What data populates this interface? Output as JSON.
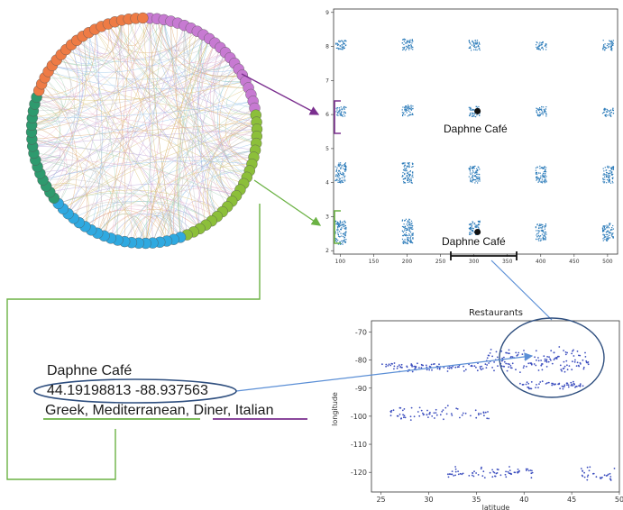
{
  "network": {
    "groups": [
      {
        "name": "purple",
        "color": "#c77ad2",
        "count": 22
      },
      {
        "name": "green",
        "color": "#8cbf3a",
        "count": 22
      },
      {
        "name": "cyan",
        "color": "#2fa9e0",
        "count": 20
      },
      {
        "name": "teal",
        "color": "#2e9a6e",
        "count": 16
      },
      {
        "name": "orange",
        "color": "#ee7b45",
        "count": 20
      }
    ]
  },
  "strip_chart": {
    "chart_data": {
      "type": "scatter",
      "title": "",
      "xlabel": "",
      "ylabel": "",
      "xlim": [
        90,
        515
      ],
      "ylim": [
        1.9,
        9.1
      ],
      "x_ticks": [
        "100",
        "150",
        "200",
        "250",
        "300",
        "350",
        "400",
        "450",
        "500"
      ],
      "y_ticks": [
        "2",
        "3",
        "4",
        "5",
        "6",
        "7",
        "8",
        "9"
      ],
      "series": [
        {
          "values": [
            {
              "x": 100,
              "y_min": 7.9,
              "y_max": 8.2
            },
            {
              "x": 200,
              "y_min": 7.9,
              "y_max": 8.25
            },
            {
              "x": 300,
              "y_min": 7.9,
              "y_max": 8.2
            },
            {
              "x": 400,
              "y_min": 7.9,
              "y_max": 8.15
            },
            {
              "x": 500,
              "y_min": 7.9,
              "y_max": 8.2
            },
            {
              "x": 100,
              "y_min": 5.95,
              "y_max": 6.25
            },
            {
              "x": 200,
              "y_min": 5.95,
              "y_max": 6.3
            },
            {
              "x": 300,
              "y_min": 5.95,
              "y_max": 6.25
            },
            {
              "x": 400,
              "y_min": 5.95,
              "y_max": 6.25
            },
            {
              "x": 500,
              "y_min": 5.95,
              "y_max": 6.2
            },
            {
              "x": 100,
              "y_min": 4.0,
              "y_max": 4.6
            },
            {
              "x": 200,
              "y_min": 4.0,
              "y_max": 4.6
            },
            {
              "x": 300,
              "y_min": 4.0,
              "y_max": 4.5
            },
            {
              "x": 400,
              "y_min": 4.0,
              "y_max": 4.5
            },
            {
              "x": 500,
              "y_min": 4.0,
              "y_max": 4.5
            },
            {
              "x": 100,
              "y_min": 2.2,
              "y_max": 2.9
            },
            {
              "x": 200,
              "y_min": 2.2,
              "y_max": 2.95
            },
            {
              "x": 300,
              "y_min": 2.2,
              "y_max": 2.9
            },
            {
              "x": 400,
              "y_min": 2.3,
              "y_max": 2.8
            },
            {
              "x": 500,
              "y_min": 2.3,
              "y_max": 2.85
            }
          ]
        }
      ],
      "highlight_points": [
        {
          "x": 300,
          "y": 6.1
        },
        {
          "x": 300,
          "y": 2.55
        }
      ],
      "point_color": "#2b7bb9"
    },
    "label_upper": "Daphne Café",
    "label_lower": "Daphne Café"
  },
  "restaurants_chart": {
    "chart_data": {
      "type": "scatter",
      "title": "Restaurants",
      "xlabel": "latitude",
      "ylabel": "longitude",
      "xlim": [
        24,
        50
      ],
      "ylim": [
        -127,
        -66
      ],
      "x_ticks": [
        "25",
        "30",
        "35",
        "40",
        "45",
        "50"
      ],
      "y_ticks": [
        "-70",
        "-80",
        "-90",
        "-100",
        "-110",
        "-120"
      ],
      "clusters": [
        {
          "x_range": [
            25,
            36
          ],
          "y_center": -82.5,
          "spread": 1.8,
          "n": 90
        },
        {
          "x_range": [
            36,
            47
          ],
          "y_center": -80,
          "spread": 5,
          "n": 150
        },
        {
          "x_range": [
            39.5,
            46.5
          ],
          "y_center": -89,
          "spread": 1.8,
          "n": 60
        },
        {
          "x_range": [
            26,
            36.5
          ],
          "y_center": -99,
          "spread": 3,
          "n": 70
        },
        {
          "x_range": [
            32,
            41
          ],
          "y_center": -120,
          "spread": 2.5,
          "n": 70
        },
        {
          "x_range": [
            46,
            49.5
          ],
          "y_center": -121,
          "spread": 3,
          "n": 30
        }
      ],
      "point_color": "#3d4fbf"
    }
  },
  "caption": {
    "name": "Daphne Café",
    "coords": "44.19198813 -88.937563",
    "categories_part1": "Greek, Mediterranean",
    "categories_sep": ", ",
    "categories_part2": "Diner, Italian"
  },
  "colors": {
    "purple": "#7a2e8e",
    "green": "#6bb244",
    "blue_ellipse": "#2f4f7f",
    "arrow_blue": "#5b8fd6"
  }
}
